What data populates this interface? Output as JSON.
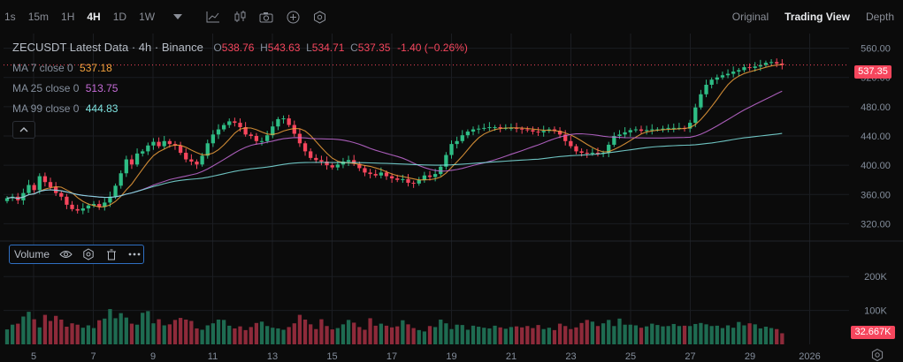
{
  "toolbar": {
    "timeframes": [
      "1s",
      "15m",
      "1H",
      "4H",
      "1D",
      "1W"
    ],
    "active_timeframe": "4H",
    "icons": [
      "chevron-down-icon",
      "line-chart-icon",
      "candles-icon",
      "camera-icon",
      "plus-circle-icon",
      "hexagon-settings-icon"
    ],
    "views": [
      "Original",
      "Trading View",
      "Depth"
    ],
    "active_view": "Trading View"
  },
  "legend": {
    "symbol": "ZECUSDT Latest Data · 4h · Binance",
    "open_label": "O",
    "open": "538.76",
    "high_label": "H",
    "high": "543.63",
    "low_label": "L",
    "low": "534.71",
    "close_label": "C",
    "close": "537.35",
    "change": "-1.40 (−0.26%)"
  },
  "moving_averages": [
    {
      "label": "MA 7 close 0",
      "value": "537.18",
      "color": "#f0a03c"
    },
    {
      "label": "MA 25 close 0",
      "value": "513.75",
      "color": "#c46bd6"
    },
    {
      "label": "MA 99 close 0",
      "value": "444.83",
      "color": "#7fe3e0"
    }
  ],
  "volume_pill": {
    "label": "Volume",
    "icons": [
      "eye-icon",
      "gear-icon",
      "trash-icon",
      "more-icon"
    ]
  },
  "price_axis": {
    "ticks": [
      "560.00",
      "520.00",
      "480.00",
      "440.00",
      "400.00",
      "360.00",
      "320.00"
    ],
    "current": "537.35"
  },
  "volume_axis": {
    "ticks": [
      "200K",
      "100K"
    ],
    "current": "32.667K"
  },
  "time_axis": {
    "ticks": [
      "5",
      "7",
      "9",
      "11",
      "13",
      "15",
      "17",
      "19",
      "21",
      "23",
      "25",
      "27",
      "29",
      "2026"
    ]
  },
  "colors": {
    "up": "#2ebd85",
    "down": "#f6465d",
    "up_vol": "#1e6b51",
    "down_vol": "#8e2a3a"
  },
  "chart_data": {
    "type": "candlestick",
    "symbol": "ZECUSDT",
    "interval": "4h",
    "ylim": [
      300,
      580
    ],
    "close": [
      355,
      357,
      352,
      362,
      373,
      366,
      385,
      377,
      370,
      362,
      357,
      346,
      340,
      338,
      341,
      345,
      347,
      343,
      349,
      357,
      372,
      389,
      408,
      401,
      416,
      419,
      427,
      432,
      426,
      433,
      429,
      427,
      417,
      408,
      405,
      401,
      413,
      430,
      442,
      449,
      455,
      460,
      458,
      452,
      442,
      440,
      433,
      433,
      441,
      453,
      463,
      464,
      455,
      443,
      430,
      419,
      410,
      407,
      405,
      400,
      397,
      401,
      405,
      407,
      402,
      396,
      390,
      388,
      386,
      390,
      385,
      382,
      380,
      381,
      376,
      375,
      380,
      386,
      384,
      388,
      398,
      414,
      429,
      433,
      441,
      446,
      449,
      450,
      451,
      452,
      452,
      451,
      451,
      451,
      450,
      449,
      448,
      446,
      445,
      447,
      449,
      447,
      442,
      433,
      426,
      419,
      417,
      416,
      417,
      416,
      417,
      428,
      440,
      442,
      445,
      448,
      449,
      447,
      448,
      449,
      449,
      450,
      451,
      451,
      451,
      450,
      458,
      479,
      497,
      510,
      517,
      520,
      523,
      525,
      528,
      530,
      534,
      533,
      535,
      537,
      540,
      541,
      539,
      537
    ],
    "volume_max": 250000,
    "volume": [
      44000,
      58000,
      61000,
      82000,
      96000,
      74000,
      50000,
      87000,
      69000,
      84000,
      73000,
      52000,
      62000,
      58000,
      49000,
      56000,
      48000,
      71000,
      76000,
      104000,
      77000,
      92000,
      79000,
      61000,
      58000,
      93000,
      98000,
      62000,
      74000,
      56000,
      59000,
      72000,
      78000,
      73000,
      69000,
      47000,
      43000,
      56000,
      62000,
      73000,
      72000,
      55000,
      47000,
      53000,
      42000,
      51000,
      63000,
      67000,
      54000,
      49000,
      47000,
      43000,
      51000,
      62000,
      87000,
      73000,
      59000,
      45000,
      74000,
      54000,
      44000,
      48000,
      59000,
      72000,
      64000,
      51000,
      43000,
      77000,
      55000,
      61000,
      55000,
      50000,
      53000,
      71000,
      59000,
      48000,
      42000,
      38000,
      54000,
      51000,
      73000,
      62000,
      45000,
      58000,
      57000,
      43000,
      55000,
      52000,
      49000,
      47000,
      55000,
      50000,
      46000,
      51000,
      53000,
      50000,
      54000,
      48000,
      57000,
      45000,
      49000,
      42000,
      61000,
      54000,
      45000,
      50000,
      63000,
      72000,
      67000,
      54000,
      62000,
      72000,
      54000,
      76000,
      58000,
      58000,
      56000,
      49000,
      53000,
      61000,
      57000,
      53000,
      54000,
      60000,
      54000,
      55000,
      54000,
      60000,
      63000,
      59000,
      54000,
      55000,
      48000,
      56000,
      49000,
      66000,
      56000,
      62000,
      59000,
      47000,
      52000,
      48000,
      45000,
      32667
    ],
    "ma7_last": 537.18,
    "ma25_last": 513.75,
    "ma99_last": 444.83
  }
}
